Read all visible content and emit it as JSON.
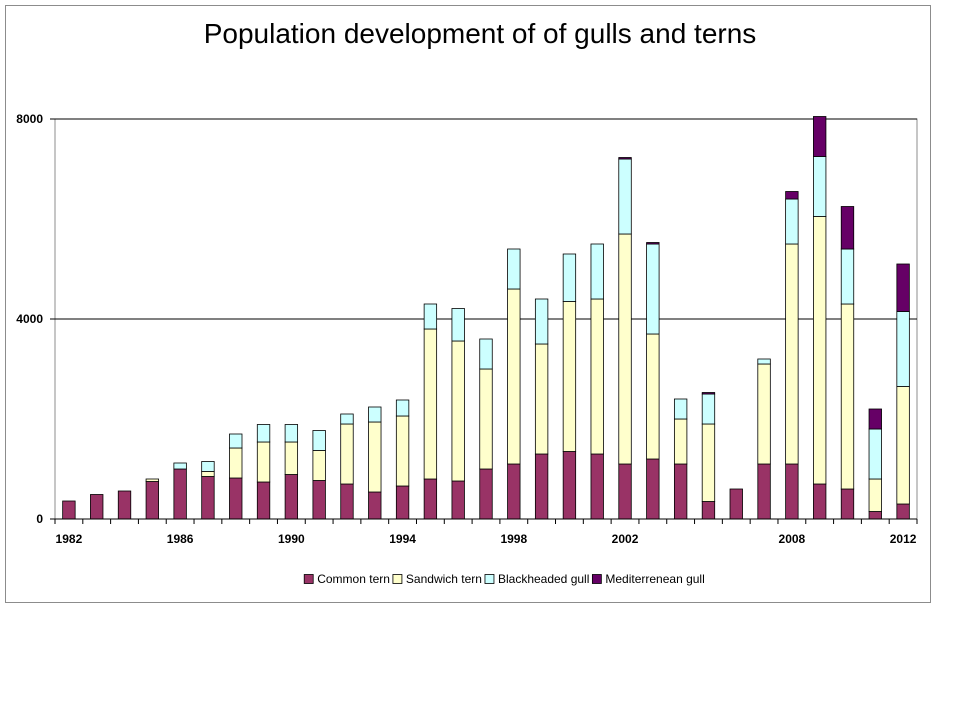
{
  "chart_data": {
    "type": "bar",
    "stacked": true,
    "title": "Population development of of gulls and terns",
    "xlabel": "",
    "ylabel": "",
    "ylim": [
      0,
      8000
    ],
    "y_ticks": [
      "0",
      "4000",
      "8000"
    ],
    "grid": "horizontal",
    "legend_position": "bottom",
    "x_tick_labels": {
      "1982": "1982",
      "1986": "1986",
      "1990": "1990",
      "1994": "1994",
      "1998": "1998",
      "2002": "2002",
      "2008": "2008",
      "2012": "2012"
    },
    "categories": [
      1982,
      1983,
      1984,
      1985,
      1986,
      1987,
      1988,
      1989,
      1990,
      1991,
      1992,
      1993,
      1994,
      1995,
      1996,
      1997,
      1998,
      1999,
      2000,
      2001,
      2002,
      2003,
      2004,
      2005,
      2006,
      2007,
      2008,
      2009,
      2010,
      2011,
      2012
    ],
    "series": [
      {
        "name": "Common tern",
        "color": "#993366",
        "values": [
          360,
          490,
          560,
          750,
          1000,
          850,
          820,
          740,
          890,
          770,
          700,
          540,
          660,
          800,
          760,
          1000,
          1100,
          1300,
          1350,
          1300,
          1100,
          1200,
          1100,
          350,
          600,
          1100,
          1100,
          700,
          600,
          150,
          300
        ]
      },
      {
        "name": "Sandwich tern",
        "color": "#ffffcc",
        "values": [
          0,
          0,
          0,
          50,
          0,
          100,
          600,
          800,
          650,
          600,
          1200,
          1400,
          1400,
          3000,
          2800,
          2000,
          3500,
          2200,
          3000,
          3100,
          4600,
          2500,
          900,
          1550,
          0,
          2000,
          4400,
          5350,
          3700,
          650,
          2350
        ]
      },
      {
        "name": "Blackheaded gull",
        "color": "#ccffff",
        "values": [
          0,
          0,
          0,
          0,
          120,
          200,
          280,
          350,
          350,
          400,
          200,
          300,
          320,
          500,
          650,
          600,
          800,
          900,
          950,
          1100,
          1500,
          1800,
          400,
          600,
          0,
          100,
          900,
          1200,
          1100,
          1000,
          1500
        ]
      },
      {
        "name": "Mediterrenean gull",
        "color": "#660066",
        "values": [
          0,
          0,
          0,
          0,
          0,
          0,
          0,
          0,
          0,
          0,
          0,
          0,
          0,
          0,
          0,
          0,
          0,
          0,
          0,
          0,
          30,
          30,
          0,
          30,
          0,
          0,
          150,
          800,
          850,
          400,
          950
        ]
      }
    ]
  }
}
